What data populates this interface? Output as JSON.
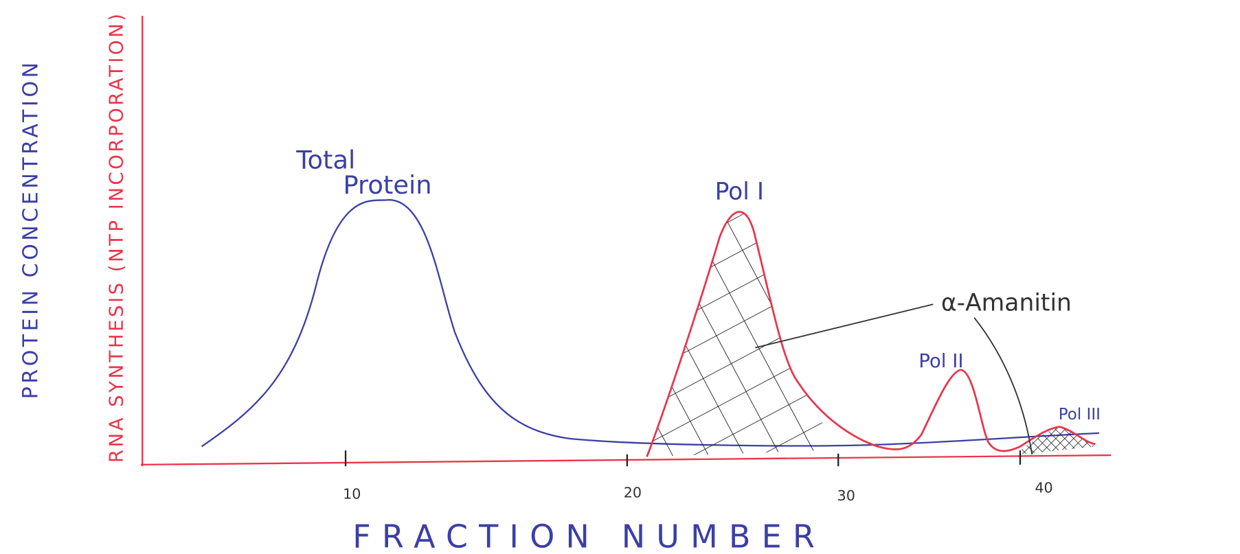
{
  "y_axis": {
    "protein_label": "PROTEIN CONCENTRATION",
    "rna_label": "RNA SYNTHESIS (NTP INCORPORATION)"
  },
  "x_axis": {
    "label": "FRACTION NUMBER",
    "ticks": [
      "10",
      "20",
      "30",
      "40"
    ]
  },
  "annotations": {
    "total_protein": [
      "Total",
      "Protein"
    ],
    "pol_1": "Pol I",
    "pol_2": "Pol II",
    "pol_3": "Pol III",
    "amanitin": "α-Amanitin"
  }
}
